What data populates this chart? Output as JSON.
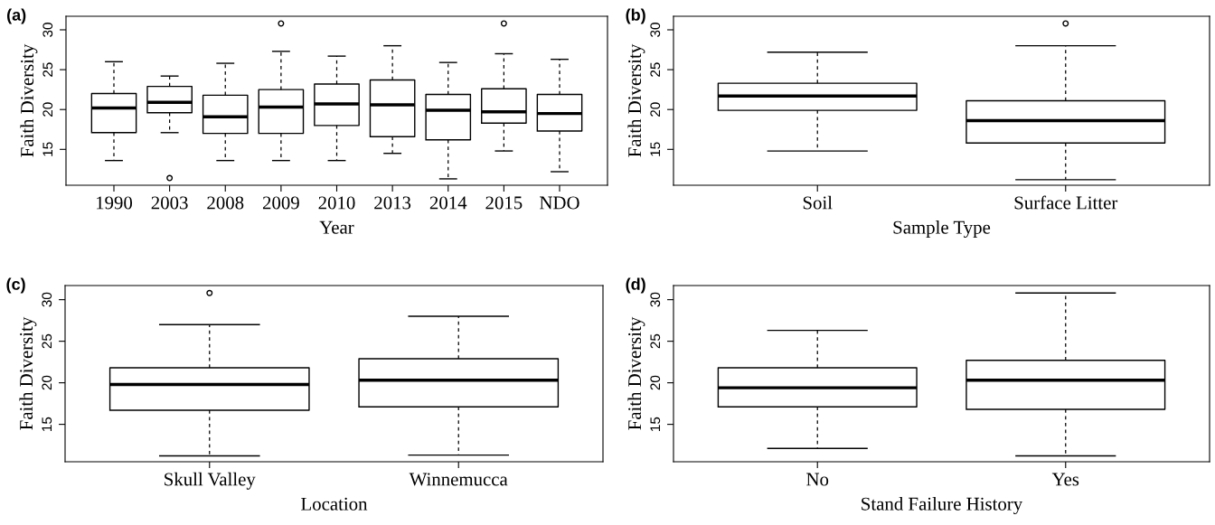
{
  "chart_data": [
    {
      "type": "box",
      "title": "(a)",
      "xlabel": "Year",
      "ylabel": "Faith Diversity",
      "ylim": [
        10.5,
        31.7
      ],
      "yticks": [
        15,
        20,
        25,
        30
      ],
      "grid": false,
      "categories": [
        "1990",
        "2003",
        "2008",
        "2009",
        "2010",
        "2013",
        "2014",
        "2015",
        "NDO"
      ],
      "boxes": [
        {
          "low": 13.6,
          "q1": 17.1,
          "median": 20.2,
          "q3": 22.0,
          "high": 26.0
        },
        {
          "low": 17.1,
          "q1": 19.6,
          "median": 20.9,
          "q3": 22.9,
          "high": 24.2,
          "outliers": [
            11.4
          ]
        },
        {
          "low": 13.6,
          "q1": 17.0,
          "median": 19.1,
          "q3": 21.8,
          "high": 25.8
        },
        {
          "low": 13.6,
          "q1": 17.0,
          "median": 20.3,
          "q3": 22.5,
          "high": 27.3,
          "outliers": [
            30.8
          ]
        },
        {
          "low": 13.6,
          "q1": 18.0,
          "median": 20.7,
          "q3": 23.2,
          "high": 26.7
        },
        {
          "low": 14.5,
          "q1": 16.6,
          "median": 20.6,
          "q3": 23.7,
          "high": 28.0
        },
        {
          "low": 11.3,
          "q1": 16.2,
          "median": 19.9,
          "q3": 21.9,
          "high": 25.9
        },
        {
          "low": 14.8,
          "q1": 18.3,
          "median": 19.7,
          "q3": 22.6,
          "high": 27.0,
          "outliers": [
            30.8
          ]
        },
        {
          "low": 12.2,
          "q1": 17.3,
          "median": 19.5,
          "q3": 21.9,
          "high": 26.3
        }
      ]
    },
    {
      "type": "box",
      "title": "(b)",
      "xlabel": "Sample Type",
      "ylabel": "Faith Diversity",
      "ylim": [
        10.5,
        31.7
      ],
      "yticks": [
        15,
        20,
        25,
        30
      ],
      "grid": false,
      "categories": [
        "Soil",
        "Surface Litter"
      ],
      "boxes": [
        {
          "low": 14.8,
          "q1": 19.9,
          "median": 21.7,
          "q3": 23.3,
          "high": 27.2
        },
        {
          "low": 11.2,
          "q1": 15.8,
          "median": 18.6,
          "q3": 21.1,
          "high": 28.0,
          "outliers": [
            30.8
          ]
        }
      ]
    },
    {
      "type": "box",
      "title": "(c)",
      "xlabel": "Location",
      "ylabel": "Faith Diversity",
      "ylim": [
        10.5,
        31.7
      ],
      "yticks": [
        15,
        20,
        25,
        30
      ],
      "grid": false,
      "categories": [
        "Skull Valley",
        "Winnemucca"
      ],
      "boxes": [
        {
          "low": 11.2,
          "q1": 16.7,
          "median": 19.8,
          "q3": 21.8,
          "high": 27.0,
          "outliers": [
            30.8
          ]
        },
        {
          "low": 11.3,
          "q1": 17.1,
          "median": 20.3,
          "q3": 22.9,
          "high": 28.0
        }
      ]
    },
    {
      "type": "box",
      "title": "(d)",
      "xlabel": "Stand Failure History",
      "ylabel": "Faith Diversity",
      "ylim": [
        10.5,
        31.7
      ],
      "yticks": [
        15,
        20,
        25,
        30
      ],
      "grid": false,
      "categories": [
        "No",
        "Yes"
      ],
      "boxes": [
        {
          "low": 12.1,
          "q1": 17.1,
          "median": 19.4,
          "q3": 21.8,
          "high": 26.3
        },
        {
          "low": 11.2,
          "q1": 16.8,
          "median": 20.3,
          "q3": 22.7,
          "high": 30.8
        }
      ]
    }
  ]
}
